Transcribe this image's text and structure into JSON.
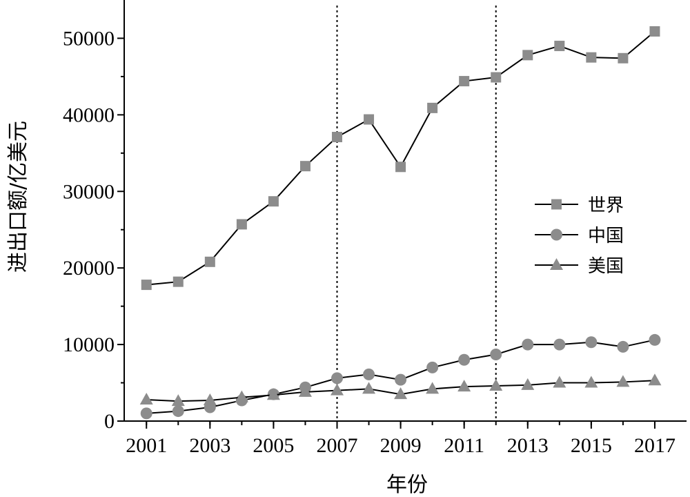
{
  "chart_data": {
    "type": "line",
    "xlabel": "年份",
    "ylabel": "进出口额/亿美元",
    "x": [
      2001,
      2002,
      2003,
      2004,
      2005,
      2006,
      2007,
      2008,
      2009,
      2010,
      2011,
      2012,
      2013,
      2014,
      2015,
      2016,
      2017
    ],
    "x_tick_labels": [
      "2001",
      "2003",
      "2005",
      "2007",
      "2009",
      "2011",
      "2013",
      "2015",
      "2017"
    ],
    "y_tick_labels": [
      "0",
      "10000",
      "20000",
      "30000",
      "40000",
      "50000"
    ],
    "xlim": [
      2000.3,
      2018
    ],
    "ylim": [
      0,
      55000
    ],
    "grid": false,
    "legend_position": "right",
    "reference_lines_x": [
      2007,
      2012
    ],
    "series": [
      {
        "name": "世界",
        "marker": "square",
        "color": "#8c8c8c",
        "values": [
          17800,
          18200,
          20800,
          25700,
          28700,
          33300,
          37100,
          39400,
          33200,
          40900,
          44400,
          44900,
          47800,
          49000,
          47500,
          47400,
          50900
        ]
      },
      {
        "name": "中国",
        "marker": "circle",
        "color": "#8c8c8c",
        "values": [
          1000,
          1300,
          1800,
          2700,
          3500,
          4400,
          5600,
          6100,
          5400,
          7000,
          8000,
          8700,
          10000,
          10000,
          10300,
          9700,
          10600
        ]
      },
      {
        "name": "美国",
        "marker": "triangle",
        "color": "#8c8c8c",
        "values": [
          2800,
          2600,
          2700,
          3100,
          3400,
          3800,
          4000,
          4200,
          3500,
          4200,
          4500,
          4600,
          4700,
          5000,
          5000,
          5100,
          5300
        ]
      }
    ]
  }
}
